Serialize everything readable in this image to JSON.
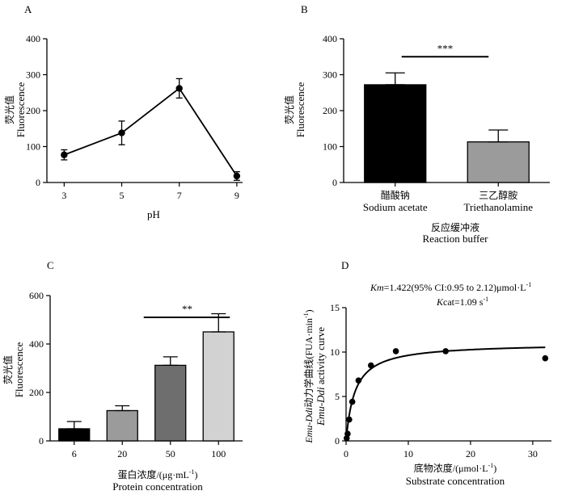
{
  "chart_data": [
    {
      "panel": "A",
      "type": "line",
      "title": "",
      "xlabel": "pH",
      "ylabel_cn": "荧光值",
      "ylabel": "Fluorescence",
      "x": [
        3,
        5,
        7,
        9
      ],
      "y": [
        77,
        138,
        262,
        18
      ],
      "err": [
        14,
        33,
        27,
        12
      ],
      "xlim": [
        2.4,
        9.2
      ],
      "ylim": [
        0,
        400
      ],
      "xticks": [
        "3",
        "5",
        "7",
        "9"
      ],
      "yticks": [
        "0",
        "100",
        "200",
        "300",
        "400"
      ]
    },
    {
      "panel": "B",
      "type": "bar",
      "ylabel_cn": "荧光值",
      "ylabel": "Fluorescence",
      "categories_cn": [
        "醋酸钠",
        "三乙醇胺"
      ],
      "categories": [
        "Sodium acetate",
        "Triethanolamine"
      ],
      "values": [
        272,
        113
      ],
      "err": [
        33,
        33
      ],
      "colors": [
        "#000000",
        "#9b9b9b"
      ],
      "ylim": [
        0,
        400
      ],
      "yticks": [
        "0",
        "100",
        "200",
        "300",
        "400"
      ],
      "xlabel_cn": "反应缓冲液",
      "xlabel": "Reaction buffer",
      "significance": "***"
    },
    {
      "panel": "C",
      "type": "bar",
      "ylabel_cn": "荧光值",
      "ylabel": "Fluorescence",
      "categories": [
        "6",
        "20",
        "50",
        "100"
      ],
      "values": [
        50,
        125,
        312,
        450
      ],
      "err": [
        30,
        20,
        35,
        75
      ],
      "colors": [
        "#000000",
        "#9b9b9b",
        "#6e6e6e",
        "#d2d2d2"
      ],
      "ylim": [
        0,
        600
      ],
      "yticks": [
        "0",
        "200",
        "400",
        "600"
      ],
      "xlabel_cn": "蛋白浓度/(μg·mL",
      "xlabel_sup": "-1",
      "xlabel_close": ")",
      "xlabel": "Protein concentration",
      "significance": "**"
    },
    {
      "panel": "D",
      "type": "scatter",
      "ylabel_cn_prefix": "Emu-Ddi",
      "ylabel_cn_rest": "动力学曲线(FUA·min",
      "ylabel_sup": "-1",
      "ylabel_close": ")",
      "ylabel_en_prefix": "Emu-Ddi",
      "ylabel_en_rest": " activity curve",
      "xlabel_cn": "底物浓度/(μmol·L",
      "xlabel_sup": "-1",
      "xlabel_close": ")",
      "xlabel": "Substrate concentration",
      "x": [
        0.1,
        0.25,
        0.5,
        1,
        2,
        4,
        8,
        16,
        32
      ],
      "y": [
        0.3,
        0.8,
        2.4,
        4.4,
        6.8,
        8.5,
        10.1,
        10.1,
        9.3
      ],
      "fit": {
        "model": "michaelis-menten",
        "vmax": 11.0,
        "km": 1.422
      },
      "xlim": [
        0,
        33
      ],
      "ylim": [
        0,
        15
      ],
      "xticks": [
        "0",
        "10",
        "20",
        "30"
      ],
      "yticks": [
        "0",
        "5",
        "10",
        "15"
      ],
      "annotation_line1_italic": "Km",
      "annotation_line1": "=1.422(95% CI:0.95 to 2.12)μmol·L",
      "annotation_line1_sup": "-1",
      "annotation_line2_italic": "K",
      "annotation_line2": "cat=1.09 s",
      "annotation_line2_sup": "-1"
    }
  ],
  "panel_labels": [
    "A",
    "B",
    "C",
    "D"
  ]
}
